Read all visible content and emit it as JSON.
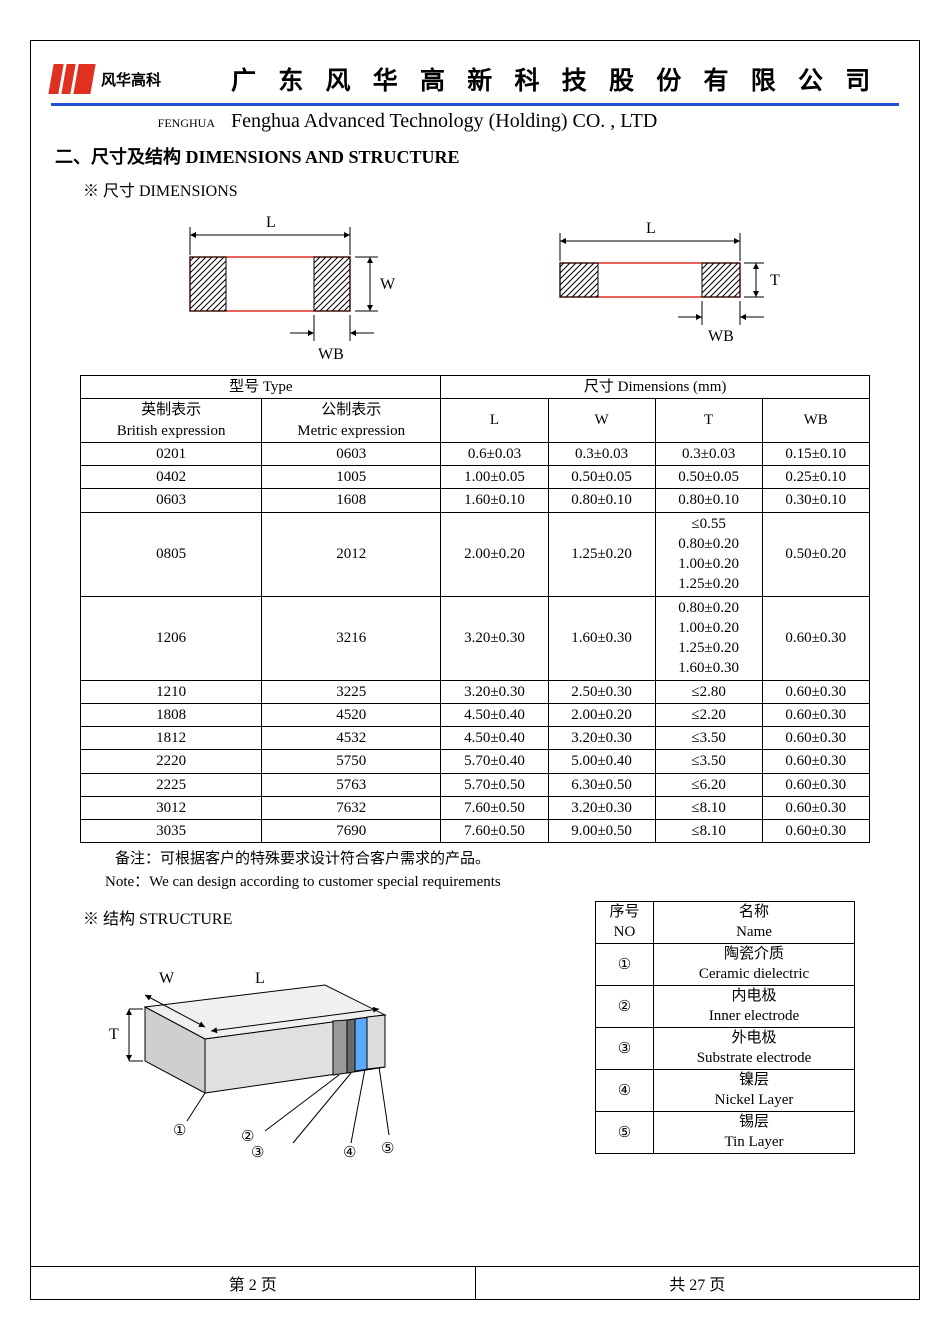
{
  "header": {
    "logo_text": "风华高科",
    "company_cn": "广 东 风 华 高 新 科 技 股 份 有 限 公 司",
    "fenghua_small": "FENGHUA",
    "company_en": "Fenghua Advanced Technology (Holding) CO. , LTD"
  },
  "section": {
    "title": "二、尺寸及结构   DIMENSIONS AND STRUCTURE",
    "dim_sub": "※ 尺寸 DIMENSIONS",
    "struct_sub": "※ 结构 STRUCTURE"
  },
  "diagram_labels": {
    "L": "L",
    "W": "W",
    "T": "T",
    "WB": "WB"
  },
  "dim_table": {
    "head": {
      "type": "型号 Type",
      "dims": "尺寸     Dimensions     (mm)",
      "british_cn": "英制表示",
      "british_en": "British expression",
      "metric_cn": "公制表示",
      "metric_en": "Metric expression",
      "L": "L",
      "W": "W",
      "T": "T",
      "WB": "WB"
    },
    "rows": [
      {
        "british": "0201",
        "metric": "0603",
        "L": "0.6±0.03",
        "W": "0.3±0.03",
        "T": "0.3±0.03",
        "WB": "0.15±0.10"
      },
      {
        "british": "0402",
        "metric": "1005",
        "L": "1.00±0.05",
        "W": "0.50±0.05",
        "T": "0.50±0.05",
        "WB": "0.25±0.10"
      },
      {
        "british": "0603",
        "metric": "1608",
        "L": "1.60±0.10",
        "W": "0.80±0.10",
        "T": "0.80±0.10",
        "WB": "0.30±0.10"
      },
      {
        "british": "0805",
        "metric": "2012",
        "L": "2.00±0.20",
        "W": "1.25±0.20",
        "T": "≤0.55\n0.80±0.20\n1.00±0.20\n1.25±0.20",
        "WB": "0.50±0.20"
      },
      {
        "british": "1206",
        "metric": "3216",
        "L": "3.20±0.30",
        "W": "1.60±0.30",
        "T": "0.80±0.20\n1.00±0.20\n1.25±0.20\n1.60±0.30",
        "WB": "0.60±0.30"
      },
      {
        "british": "1210",
        "metric": "3225",
        "L": "3.20±0.30",
        "W": "2.50±0.30",
        "T": "≤2.80",
        "WB": "0.60±0.30"
      },
      {
        "british": "1808",
        "metric": "4520",
        "L": "4.50±0.40",
        "W": "2.00±0.20",
        "T": "≤2.20",
        "WB": "0.60±0.30"
      },
      {
        "british": "1812",
        "metric": "4532",
        "L": "4.50±0.40",
        "W": "3.20±0.30",
        "T": "≤3.50",
        "WB": "0.60±0.30"
      },
      {
        "british": "2220",
        "metric": "5750",
        "L": "5.70±0.40",
        "W": "5.00±0.40",
        "T": "≤3.50",
        "WB": "0.60±0.30"
      },
      {
        "british": "2225",
        "metric": "5763",
        "L": "5.70±0.50",
        "W": "6.30±0.50",
        "T": "≤6.20",
        "WB": "0.60±0.30"
      },
      {
        "british": "3012",
        "metric": "7632",
        "L": "7.60±0.50",
        "W": "3.20±0.30",
        "T": "≤8.10",
        "WB": "0.60±0.30"
      },
      {
        "british": "3035",
        "metric": "7690",
        "L": "7.60±0.50",
        "W": "9.00±0.50",
        "T": "≤8.10",
        "WB": "0.60±0.30"
      }
    ]
  },
  "notes": {
    "cn": "备注：可根据客户的特殊要求设计符合客户需求的产品。",
    "en": "Note：We can design according to customer special requirements"
  },
  "struct_table": {
    "head_no_cn": "序号",
    "head_no_en": "NO",
    "head_name_cn": "名称",
    "head_name_en": "Name",
    "rows": [
      {
        "no": "①",
        "cn": "陶瓷介质",
        "en": "Ceramic   dielectric"
      },
      {
        "no": "②",
        "cn": "内电极",
        "en": "Inner   electrode"
      },
      {
        "no": "③",
        "cn": "外电极",
        "en": "Substrate   electrode"
      },
      {
        "no": "④",
        "cn": "镍层",
        "en": "Nickel Layer"
      },
      {
        "no": "⑤",
        "cn": "锡层",
        "en": "Tin Layer"
      }
    ]
  },
  "structure_diagram": {
    "labels": {
      "W": "W",
      "L": "L",
      "T": "T"
    },
    "callouts": [
      "①",
      "②",
      "③",
      "④",
      "⑤"
    ],
    "colors": {
      "body": "#e8e8e8",
      "body_dark": "#bfbfbf",
      "inner": "#808080",
      "outer": "#5a5a5a",
      "nickel": "#5aa8ff",
      "tin": "#d0d0d0",
      "line": "#000000"
    }
  },
  "footer": {
    "left": "第   2   页",
    "right": "共  27  页"
  },
  "style": {
    "accent_blue": "#2050d0",
    "logo_red": "#e03020",
    "hatch": "#000000",
    "red_border": "#e03020"
  }
}
